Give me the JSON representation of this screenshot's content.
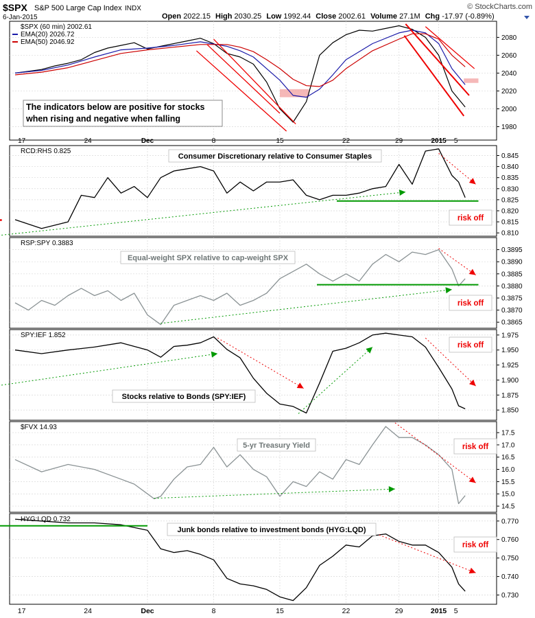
{
  "header": {
    "symbol": "$SPX",
    "name": "S&P 500 Large Cap Index",
    "exchange": "INDX",
    "copyright": "© StockCharts.com",
    "date": "6-Jan-2015",
    "open_label": "Open",
    "open": "2022.15",
    "high_label": "High",
    "high": "2030.25",
    "low_label": "Low",
    "low": "1992.44",
    "close_label": "Close",
    "close": "2002.61",
    "volume_label": "Volume",
    "volume": "27.1M",
    "chg_label": "Chg",
    "chg": "-17.97 (-0.89%)"
  },
  "colors": {
    "price": "#000000",
    "ema20": "#1a1aa8",
    "ema50": "#cc0000",
    "ratio_gray": "#8a9294",
    "green": "#009900",
    "red": "#ee0000",
    "zone": "#f2a0a0"
  },
  "x_axis": {
    "labels": [
      {
        "text": "17",
        "d": 0.5
      },
      {
        "text": "24",
        "d": 5.5
      },
      {
        "text": "Dec",
        "d": 10.0,
        "bold": true
      },
      {
        "text": "8",
        "d": 15.0
      },
      {
        "text": "15",
        "d": 20.0
      },
      {
        "text": "22",
        "d": 25.0
      },
      {
        "text": "29",
        "d": 29.0
      },
      {
        "text": "2015",
        "d": 32.0,
        "bold": true
      },
      {
        "text": "5",
        "d": 33.3
      }
    ]
  },
  "note": "The indicators below are positive for stocks when rising and negative when falling",
  "chart_data": [
    {
      "panel": "spx",
      "type": "line",
      "title": "$SPX (60 min) 2002.61",
      "legend": [
        {
          "name": "EMA(20) 2026.72",
          "color": "#1a1aa8"
        },
        {
          "name": "EMA(50) 2046.92",
          "color": "#cc0000"
        }
      ],
      "ylim": [
        1965,
        2098
      ],
      "yticks": [
        1980,
        2000,
        2020,
        2040,
        2060,
        2080
      ],
      "yticks_labels": [
        "1980",
        "2000",
        "2020",
        "2040",
        "2060",
        "2080"
      ],
      "series": [
        {
          "name": "$SPX",
          "color": "#000000",
          "width": 1.2,
          "x": [
            0,
            1,
            2,
            3,
            4,
            5,
            6,
            7,
            8,
            9,
            10,
            11,
            12,
            13,
            14,
            15,
            16,
            17,
            18,
            19,
            20,
            21,
            22,
            23,
            24,
            25,
            26,
            27,
            28,
            29,
            30,
            31,
            32,
            33,
            34
          ],
          "y": [
            2040,
            2042,
            2044,
            2048,
            2051,
            2055,
            2063,
            2068,
            2071,
            2074,
            2067,
            2070,
            2073,
            2076,
            2079,
            2073,
            2062,
            2058,
            2050,
            2030,
            2000,
            1985,
            2008,
            2060,
            2074,
            2083,
            2088,
            2087,
            2090,
            2093,
            2089,
            2080,
            2060,
            2020,
            2002
          ]
        },
        {
          "name": "EMA(20)",
          "color": "#1a1aa8",
          "width": 1.2,
          "x": [
            0,
            2,
            4,
            6,
            8,
            10,
            12,
            14,
            16,
            17,
            18,
            19,
            20,
            21,
            22,
            23,
            24,
            25,
            27,
            29,
            30,
            31,
            32,
            33,
            34
          ],
          "y": [
            2040,
            2043,
            2049,
            2058,
            2066,
            2068,
            2071,
            2075,
            2070,
            2065,
            2058,
            2045,
            2032,
            2015,
            2013,
            2022,
            2038,
            2055,
            2073,
            2085,
            2088,
            2085,
            2073,
            2045,
            2027
          ]
        },
        {
          "name": "EMA(50)",
          "color": "#cc0000",
          "width": 1.2,
          "x": [
            0,
            2,
            4,
            6,
            8,
            10,
            12,
            14,
            16,
            17,
            18,
            19,
            20,
            21,
            22,
            23,
            24,
            25,
            27,
            29,
            30,
            31,
            32,
            33,
            34
          ],
          "y": [
            2038,
            2041,
            2046,
            2054,
            2062,
            2066,
            2069,
            2072,
            2072,
            2069,
            2064,
            2055,
            2045,
            2033,
            2026,
            2025,
            2032,
            2045,
            2065,
            2078,
            2084,
            2084,
            2078,
            2060,
            2047
          ]
        }
      ],
      "lines": [
        {
          "color": "#ee0000",
          "width": 1.3,
          "p1": [
            15.0,
            2078
          ],
          "p2": [
            21.2,
            1983
          ]
        },
        {
          "color": "#ee0000",
          "width": 1.3,
          "p1": [
            13.7,
            2065
          ],
          "p2": [
            20.5,
            1975
          ]
        },
        {
          "color": "#ee0000",
          "width": 1.3,
          "p1": [
            14.5,
            2072
          ],
          "p2": [
            20.0,
            1995
          ]
        },
        {
          "color": "#ee0000",
          "width": 2.0,
          "p1": [
            29.5,
            2095
          ],
          "p2": [
            34.3,
            2015
          ]
        },
        {
          "color": "#ee0000",
          "width": 2.0,
          "p1": [
            29.4,
            2082
          ],
          "p2": [
            33.9,
            1992
          ]
        },
        {
          "color": "#ee0000",
          "width": 1.3,
          "p1": [
            31.0,
            2092
          ],
          "p2": [
            34.7,
            2045
          ]
        }
      ],
      "zones": [
        {
          "x": [
            20.0,
            22.2
          ],
          "y": [
            2013,
            2022
          ]
        },
        {
          "x": [
            33.9,
            35.0
          ],
          "y": [
            2029,
            2034
          ]
        }
      ]
    },
    {
      "panel": "rcd_rhs",
      "type": "line",
      "title": "RCD:RHS 0.825",
      "annotation": "Consumer Discretionary relative to Consumer Staples",
      "risk_label": "risk off",
      "ylim": [
        0.8085,
        0.8495
      ],
      "yticks": [
        0.81,
        0.815,
        0.82,
        0.825,
        0.83,
        0.835,
        0.84,
        0.845
      ],
      "yticks_labels": [
        "0.810",
        "0.815",
        "0.820",
        "0.825",
        "0.830",
        "0.835",
        "0.840",
        "0.845"
      ],
      "series": [
        {
          "name": "RCD:RHS",
          "color": "#000000",
          "width": 1.3,
          "x": [
            0,
            2,
            4,
            5,
            6,
            7,
            8,
            9,
            10,
            11,
            12,
            13,
            14,
            15,
            16,
            17,
            18,
            19,
            20,
            21,
            22,
            23,
            24,
            25,
            26,
            27,
            28,
            29,
            30,
            31,
            32,
            33,
            33.5,
            34
          ],
          "y": [
            0.816,
            0.812,
            0.815,
            0.827,
            0.826,
            0.835,
            0.828,
            0.831,
            0.826,
            0.835,
            0.838,
            0.839,
            0.84,
            0.838,
            0.828,
            0.833,
            0.829,
            0.833,
            0.833,
            0.834,
            0.827,
            0.825,
            0.827,
            0.827,
            0.828,
            0.83,
            0.831,
            0.841,
            0.832,
            0.847,
            0.848,
            0.836,
            0.833,
            0.826
          ]
        }
      ],
      "lines": [
        {
          "color": "#009900",
          "width": 2.0,
          "p1": [
            24.3,
            0.8244
          ],
          "p2": [
            35.0,
            0.8244
          ]
        },
        {
          "color": "#009900",
          "width": 1.0,
          "dashed": true,
          "p1": [
            -1.8,
            0.8085
          ],
          "p2": [
            29.5,
            0.8285
          ]
        },
        {
          "color": "#ee0000",
          "width": 1.0,
          "dashed": true,
          "p1": [
            32.0,
            0.846
          ],
          "p2": [
            34.8,
            0.832
          ]
        },
        {
          "color": "#ee0000",
          "width": 2.5,
          "p1": [
            -1.8,
            0.8158
          ],
          "p2": [
            -1.0,
            0.8158
          ]
        }
      ]
    },
    {
      "panel": "rsp_spy",
      "type": "line",
      "title": "RSP:SPY 0.3883",
      "annotation": "Equal-weight SPX relative to cap-weight SPX",
      "risk_label": "risk off",
      "ylim": [
        0.38625,
        0.39
      ],
      "yticks": [
        0.3865,
        0.387,
        0.3875,
        0.388,
        0.3885,
        0.389,
        0.3895
      ],
      "yticks_labels": [
        "0.3865",
        "0.3870",
        "0.3875",
        "0.3880",
        "0.3885",
        "0.3890",
        "0.3895"
      ],
      "series": [
        {
          "name": "RSP:SPY",
          "color": "#8a9294",
          "width": 1.3,
          "x": [
            0,
            1,
            2,
            3,
            4,
            5,
            6,
            7,
            8,
            9,
            10,
            10.5,
            11,
            12,
            13,
            14,
            15,
            16,
            17,
            18,
            19,
            20,
            21,
            22,
            23,
            24,
            25,
            26,
            27,
            28,
            29,
            30,
            31,
            32,
            33,
            33.5,
            34
          ],
          "y": [
            0.3873,
            0.387,
            0.3874,
            0.3872,
            0.3876,
            0.3879,
            0.3876,
            0.3878,
            0.3874,
            0.3877,
            0.3868,
            0.3866,
            0.3864,
            0.3872,
            0.3874,
            0.3876,
            0.3874,
            0.3877,
            0.3872,
            0.3874,
            0.3877,
            0.3883,
            0.3886,
            0.3889,
            0.3885,
            0.3882,
            0.3885,
            0.3882,
            0.3889,
            0.3893,
            0.389,
            0.3894,
            0.3893,
            0.3895,
            0.3887,
            0.388,
            0.3883
          ]
        }
      ],
      "lines": [
        {
          "color": "#009900",
          "width": 2.0,
          "p1": [
            22.8,
            0.38805
          ],
          "p2": [
            35.0,
            0.38805
          ]
        },
        {
          "color": "#009900",
          "width": 1.0,
          "dashed": true,
          "p1": [
            11.0,
            0.38645
          ],
          "p2": [
            33.0,
            0.38785
          ]
        },
        {
          "color": "#ee0000",
          "width": 1.0,
          "dashed": true,
          "p1": [
            32.0,
            0.38955
          ],
          "p2": [
            34.8,
            0.38845
          ]
        }
      ]
    },
    {
      "panel": "spy_ief",
      "type": "line",
      "title": "SPY:IEF 1.852",
      "annotation": "Stocks relative to Bonds (SPY:IEF)",
      "risk_label": "risk off",
      "ylim": [
        1.833,
        1.984
      ],
      "yticks": [
        1.85,
        1.875,
        1.9,
        1.925,
        1.95,
        1.975
      ],
      "yticks_labels": [
        "1.850",
        "1.875",
        "1.900",
        "1.925",
        "1.950",
        "1.975"
      ],
      "series": [
        {
          "name": "SPY:IEF",
          "color": "#000000",
          "width": 1.3,
          "x": [
            0,
            2,
            4,
            6,
            8,
            10,
            11,
            12,
            13,
            14,
            15,
            16,
            17,
            18,
            19,
            20,
            21,
            22,
            23,
            24,
            25,
            26,
            27,
            28,
            29,
            30,
            31,
            32,
            33,
            33.5,
            34
          ],
          "y": [
            1.95,
            1.944,
            1.95,
            1.955,
            1.962,
            1.95,
            1.938,
            1.956,
            1.958,
            1.962,
            1.972,
            1.951,
            1.937,
            1.903,
            1.878,
            1.86,
            1.856,
            1.845,
            1.895,
            1.948,
            1.953,
            1.962,
            1.975,
            1.978,
            1.975,
            1.972,
            1.955,
            1.921,
            1.885,
            1.857,
            1.852
          ]
        }
      ],
      "lines": [
        {
          "color": "#009900",
          "width": 1.0,
          "dashed": true,
          "p1": [
            -1.8,
            1.889
          ],
          "p2": [
            15.3,
            1.944
          ]
        },
        {
          "color": "#009900",
          "width": 1.0,
          "dashed": true,
          "p1": [
            21.4,
            1.844
          ],
          "p2": [
            27.0,
            1.955
          ]
        },
        {
          "color": "#ee0000",
          "width": 1.0,
          "dashed": true,
          "p1": [
            15.3,
            1.97
          ],
          "p2": [
            21.8,
            1.886
          ]
        },
        {
          "color": "#ee0000",
          "width": 1.0,
          "dashed": true,
          "p1": [
            31.0,
            1.97
          ],
          "p2": [
            34.8,
            1.89
          ]
        }
      ]
    },
    {
      "panel": "fvx",
      "type": "line",
      "title": "$FVX 14.93",
      "annotation": "5-yr Treasury Yield",
      "risk_label": "risk off",
      "ylim": [
        14.25,
        17.95
      ],
      "yticks": [
        14.5,
        15.0,
        15.5,
        16.0,
        16.5,
        17.0,
        17.5
      ],
      "yticks_labels": [
        "14.5",
        "15.0",
        "15.5",
        "16.0",
        "16.5",
        "17.0",
        "17.5"
      ],
      "series": [
        {
          "name": "$FVX",
          "color": "#8a9294",
          "width": 1.3,
          "x": [
            0,
            2,
            4,
            6,
            8,
            9,
            10,
            10.5,
            11,
            12,
            13,
            14,
            15,
            16,
            17,
            18,
            19,
            20,
            21,
            22,
            23,
            24,
            25,
            26,
            27,
            28,
            29,
            30,
            31,
            32,
            33,
            33.5,
            34
          ],
          "y": [
            16.4,
            15.9,
            16.2,
            16.0,
            15.6,
            15.4,
            15.0,
            14.8,
            14.9,
            15.6,
            16.1,
            16.2,
            16.9,
            16.1,
            16.6,
            16.0,
            15.7,
            14.9,
            15.5,
            15.3,
            15.9,
            15.6,
            16.4,
            16.2,
            17.0,
            17.75,
            17.3,
            17.3,
            17.0,
            16.6,
            16.0,
            14.6,
            14.93
          ]
        }
      ],
      "lines": [
        {
          "color": "#009900",
          "width": 1.0,
          "dashed": true,
          "p1": [
            10.5,
            14.82
          ],
          "p2": [
            28.7,
            15.2
          ]
        },
        {
          "color": "#ee0000",
          "width": 1.0,
          "dashed": true,
          "p1": [
            28.7,
            17.9
          ],
          "p2": [
            34.8,
            15.45
          ]
        }
      ]
    },
    {
      "panel": "hyg_lqd",
      "type": "line",
      "title": "HYG:LQD 0.732",
      "annotation": "Junk bonds relative to investment bonds (HYG:LQD)",
      "risk_label": "risk off",
      "ylim": [
        0.725,
        0.774
      ],
      "yticks": [
        0.73,
        0.74,
        0.75,
        0.76,
        0.77
      ],
      "yticks_labels": [
        "0.730",
        "0.740",
        "0.750",
        "0.760",
        "0.770"
      ],
      "series": [
        {
          "name": "HYG:LQD",
          "color": "#000000",
          "width": 1.3,
          "x": [
            0,
            2,
            4,
            6,
            8,
            10,
            10.5,
            11,
            12,
            13,
            14,
            15,
            16,
            17,
            18,
            19,
            20,
            21,
            22,
            23,
            24,
            25,
            26,
            27,
            28,
            29,
            30,
            31,
            32,
            33,
            33.5,
            34
          ],
          "y": [
            0.771,
            0.77,
            0.769,
            0.769,
            0.768,
            0.765,
            0.76,
            0.755,
            0.753,
            0.754,
            0.752,
            0.749,
            0.739,
            0.736,
            0.735,
            0.733,
            0.729,
            0.727,
            0.734,
            0.746,
            0.751,
            0.757,
            0.756,
            0.762,
            0.763,
            0.759,
            0.757,
            0.757,
            0.753,
            0.745,
            0.736,
            0.732
          ]
        }
      ],
      "lines": [
        {
          "color": "#009900",
          "width": 2.0,
          "p1": [
            -1.8,
            0.7674
          ],
          "p2": [
            10.0,
            0.7674
          ]
        },
        {
          "color": "#ee0000",
          "width": 1.0,
          "dashed": true,
          "p1": [
            27.5,
            0.7625
          ],
          "p2": [
            34.8,
            0.742
          ]
        }
      ]
    }
  ]
}
